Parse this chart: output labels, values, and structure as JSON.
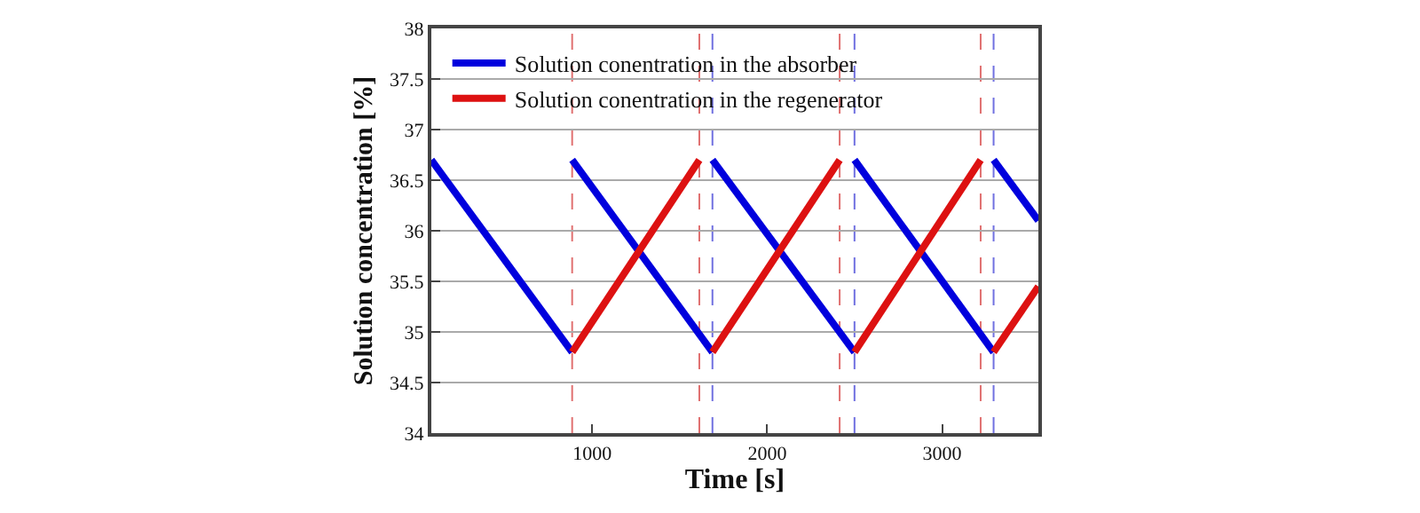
{
  "chart_data": {
    "type": "line",
    "xlabel": "Time [s]",
    "ylabel": "Solution concentration [%]",
    "xlim": [
      80,
      3550
    ],
    "xticks": [
      1000,
      2000,
      3000
    ],
    "ylim": [
      34,
      38
    ],
    "yticks": [
      34,
      34.5,
      35,
      35.5,
      36,
      36.5,
      37,
      37.5,
      38
    ],
    "grid": "y",
    "legend": "top left",
    "line_style": "solid",
    "series": [
      {
        "name": "Solution conentration in the absorber",
        "color": "#0000dd",
        "x": [
          80,
          885,
          null,
          885,
          1687,
          null,
          1687,
          2499,
          null,
          2499,
          3294,
          null,
          3294,
          3550
        ],
        "values": [
          36.7,
          34.8,
          null,
          36.7,
          34.8,
          null,
          36.7,
          34.8,
          null,
          36.7,
          34.8,
          null,
          36.7,
          36.1
        ]
      },
      {
        "name": "Solution conentration in the regenerator",
        "color": "#dd1111",
        "x": [
          885,
          1612,
          null,
          1687,
          2414,
          null,
          2499,
          3220,
          null,
          3294,
          3550
        ],
        "values": [
          34.8,
          36.7,
          null,
          34.8,
          36.7,
          null,
          34.8,
          36.7,
          null,
          34.8,
          35.45
        ]
      }
    ],
    "ref_lines": [
      {
        "axis": "x",
        "value": 885,
        "color": "#e07070",
        "line_style": "dashed"
      },
      {
        "axis": "x",
        "value": 1612,
        "color": "#e07070",
        "line_style": "dashed"
      },
      {
        "axis": "x",
        "value": 1687,
        "color": "#7070e0",
        "line_style": "dashed"
      },
      {
        "axis": "x",
        "value": 2414,
        "color": "#e07070",
        "line_style": "dashed"
      },
      {
        "axis": "x",
        "value": 2499,
        "color": "#7070e0",
        "line_style": "dashed"
      },
      {
        "axis": "x",
        "value": 3220,
        "color": "#e07070",
        "line_style": "dashed"
      },
      {
        "axis": "x",
        "value": 3294,
        "color": "#7070e0",
        "line_style": "dashed"
      }
    ]
  }
}
